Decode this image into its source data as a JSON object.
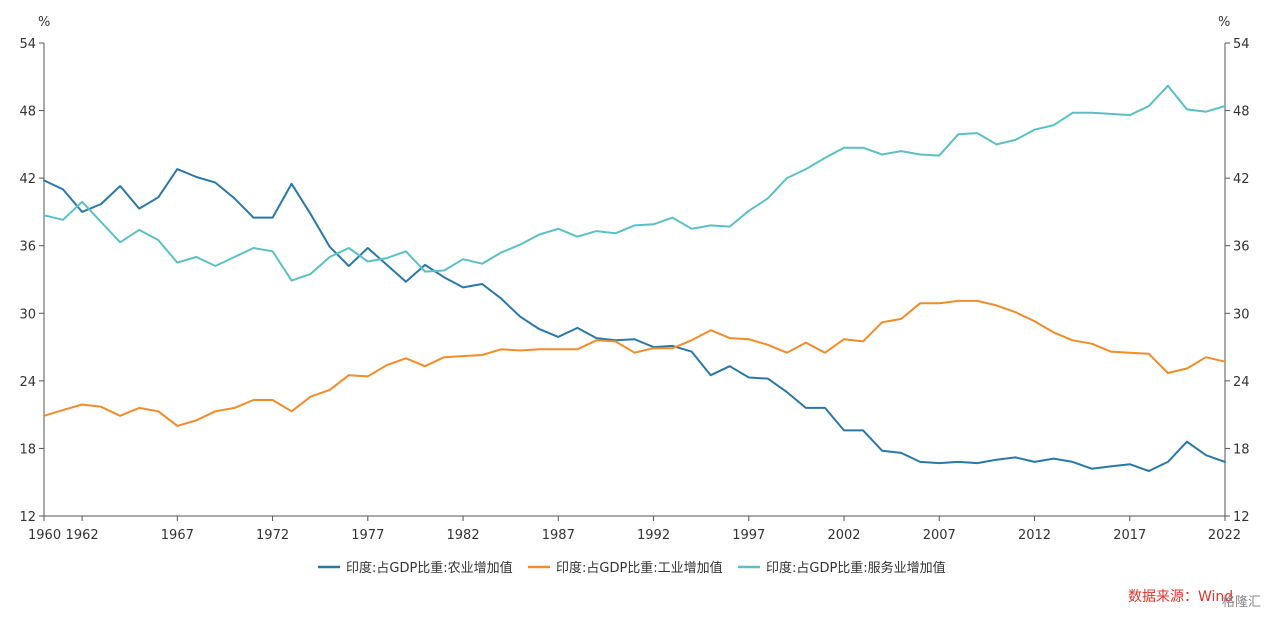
{
  "chart_data": {
    "type": "line",
    "title": "",
    "xlabel": "",
    "ylabel": "%",
    "y2label": "%",
    "ylim": [
      12,
      54
    ],
    "yticks": [
      12,
      18,
      24,
      30,
      36,
      42,
      48,
      54
    ],
    "xlim": [
      1960,
      2022
    ],
    "xticks": [
      1960,
      1962,
      1967,
      1972,
      1977,
      1982,
      1987,
      1992,
      1997,
      2002,
      2007,
      2012,
      2017,
      2022
    ],
    "grid": false,
    "legend_position": "bottom",
    "x": [
      1960,
      1961,
      1962,
      1963,
      1964,
      1965,
      1966,
      1967,
      1968,
      1969,
      1970,
      1971,
      1972,
      1973,
      1974,
      1975,
      1976,
      1977,
      1978,
      1979,
      1980,
      1981,
      1982,
      1983,
      1984,
      1985,
      1986,
      1987,
      1988,
      1989,
      1990,
      1991,
      1992,
      1993,
      1994,
      1995,
      1996,
      1997,
      1998,
      1999,
      2000,
      2001,
      2002,
      2003,
      2004,
      2005,
      2006,
      2007,
      2008,
      2009,
      2010,
      2011,
      2012,
      2013,
      2014,
      2015,
      2016,
      2017,
      2018,
      2019,
      2020,
      2021,
      2022
    ],
    "series": [
      {
        "name": "印度:占GDP比重:农业增加值",
        "color": "#2878a8",
        "values": [
          41.8,
          41.0,
          39.0,
          39.7,
          41.3,
          39.3,
          40.3,
          42.8,
          42.1,
          41.6,
          40.2,
          38.5,
          38.5,
          41.5,
          38.8,
          35.9,
          34.2,
          35.8,
          34.3,
          32.8,
          34.3,
          33.2,
          32.3,
          32.6,
          31.3,
          29.7,
          28.6,
          27.9,
          28.7,
          27.8,
          27.6,
          27.7,
          27.0,
          27.1,
          26.6,
          24.5,
          25.3,
          24.3,
          24.2,
          23.0,
          21.6,
          21.6,
          19.6,
          19.6,
          17.8,
          17.6,
          16.8,
          16.7,
          16.8,
          16.7,
          17.0,
          17.2,
          16.8,
          17.1,
          16.8,
          16.2,
          16.4,
          16.6,
          16.0,
          16.8,
          18.6,
          17.4,
          16.8
        ]
      },
      {
        "name": "印度:占GDP比重:工业增加值",
        "color": "#f08c2a",
        "values": [
          20.9,
          21.4,
          21.9,
          21.7,
          20.9,
          21.6,
          21.3,
          20.0,
          20.5,
          21.3,
          21.6,
          22.3,
          22.3,
          21.3,
          22.6,
          23.2,
          24.5,
          24.4,
          25.4,
          26.0,
          25.3,
          26.1,
          26.2,
          26.3,
          26.8,
          26.7,
          26.8,
          26.8,
          26.8,
          27.6,
          27.5,
          26.5,
          26.9,
          26.9,
          27.6,
          28.5,
          27.8,
          27.7,
          27.2,
          26.5,
          27.4,
          26.5,
          27.7,
          27.5,
          29.2,
          29.5,
          30.9,
          30.9,
          31.1,
          31.1,
          30.7,
          30.1,
          29.3,
          28.3,
          27.6,
          27.3,
          26.6,
          26.5,
          26.4,
          24.7,
          25.1,
          26.1,
          25.7
        ]
      },
      {
        "name": "印度:占GDP比重:服务业增加值",
        "color": "#5bc0c4",
        "values": [
          38.7,
          38.3,
          39.9,
          38.1,
          36.3,
          37.4,
          36.5,
          34.5,
          35.0,
          34.2,
          35.0,
          35.8,
          35.5,
          32.9,
          33.5,
          35.0,
          35.8,
          34.6,
          34.9,
          35.5,
          33.7,
          33.8,
          34.8,
          34.4,
          35.4,
          36.1,
          37.0,
          37.5,
          36.8,
          37.3,
          37.1,
          37.8,
          37.9,
          38.5,
          37.5,
          37.8,
          37.7,
          39.1,
          40.2,
          42.0,
          42.8,
          43.8,
          44.7,
          44.7,
          44.1,
          44.4,
          44.1,
          44.0,
          45.9,
          46.0,
          45.0,
          45.4,
          46.3,
          46.7,
          47.8,
          47.8,
          47.7,
          47.6,
          48.4,
          50.2,
          48.1,
          47.9,
          48.4
        ]
      }
    ]
  },
  "source": {
    "label": "数据来源：Wind",
    "watermark": "格隆汇"
  }
}
